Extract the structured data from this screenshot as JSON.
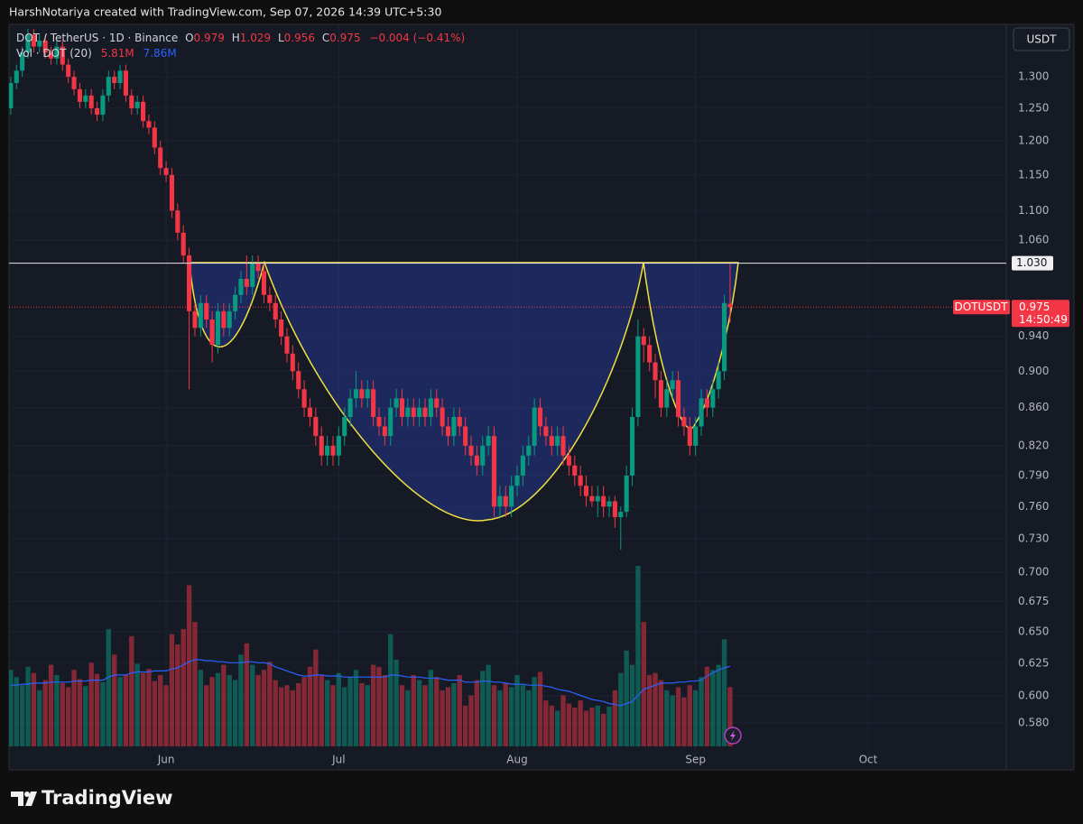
{
  "header": {
    "attribution": "HarshNotariya created with TradingView.com, Sep 07, 2026 14:39 UTC+5:30",
    "symbol": "DOT / TetherUS · 1D · Binance",
    "ohlc_letters": [
      "O",
      "H",
      "L",
      "C"
    ],
    "change": "−0.004 (−0.41%)",
    "vol_label": "Vol · DOT (20)",
    "vol_value": "5.81M",
    "vol_ma_value": "7.86M"
  },
  "chart_data": {
    "type": "candlestick",
    "candles": [
      [
        1.25,
        1.3,
        1.24,
        1.29
      ],
      [
        1.29,
        1.32,
        1.28,
        1.31
      ],
      [
        1.31,
        1.35,
        1.3,
        1.34
      ],
      [
        1.34,
        1.38,
        1.33,
        1.37
      ],
      [
        1.37,
        1.38,
        1.34,
        1.35
      ],
      [
        1.35,
        1.37,
        1.34,
        1.36
      ],
      [
        1.36,
        1.37,
        1.33,
        1.34
      ],
      [
        1.34,
        1.35,
        1.32,
        1.33
      ],
      [
        1.33,
        1.36,
        1.32,
        1.35
      ],
      [
        1.35,
        1.36,
        1.31,
        1.32
      ],
      [
        1.32,
        1.33,
        1.29,
        1.3
      ],
      [
        1.3,
        1.31,
        1.27,
        1.28
      ],
      [
        1.28,
        1.29,
        1.25,
        1.26
      ],
      [
        1.26,
        1.28,
        1.25,
        1.27
      ],
      [
        1.27,
        1.28,
        1.24,
        1.25
      ],
      [
        1.25,
        1.26,
        1.23,
        1.24
      ],
      [
        1.24,
        1.28,
        1.23,
        1.27
      ],
      [
        1.27,
        1.31,
        1.26,
        1.3
      ],
      [
        1.3,
        1.31,
        1.28,
        1.29
      ],
      [
        1.29,
        1.32,
        1.28,
        1.31
      ],
      [
        1.31,
        1.32,
        1.26,
        1.27
      ],
      [
        1.27,
        1.28,
        1.24,
        1.25
      ],
      [
        1.25,
        1.27,
        1.24,
        1.26
      ],
      [
        1.26,
        1.27,
        1.22,
        1.23
      ],
      [
        1.23,
        1.24,
        1.21,
        1.22
      ],
      [
        1.22,
        1.23,
        1.18,
        1.19
      ],
      [
        1.19,
        1.2,
        1.15,
        1.16
      ],
      [
        1.16,
        1.17,
        1.14,
        1.15
      ],
      [
        1.15,
        1.16,
        1.09,
        1.1
      ],
      [
        1.1,
        1.11,
        1.06,
        1.07
      ],
      [
        1.07,
        1.08,
        1.03,
        1.04
      ],
      [
        1.04,
        1.05,
        0.88,
        0.97
      ],
      [
        0.97,
        0.98,
        0.94,
        0.95
      ],
      [
        0.95,
        0.99,
        0.94,
        0.98
      ],
      [
        0.98,
        0.99,
        0.95,
        0.96
      ],
      [
        0.96,
        0.97,
        0.91,
        0.93
      ],
      [
        0.93,
        0.98,
        0.92,
        0.97
      ],
      [
        0.97,
        0.98,
        0.94,
        0.95
      ],
      [
        0.95,
        0.98,
        0.94,
        0.97
      ],
      [
        0.97,
        1.0,
        0.96,
        0.99
      ],
      [
        0.99,
        1.02,
        0.98,
        1.01
      ],
      [
        1.01,
        1.04,
        0.99,
        1.0
      ],
      [
        1.0,
        1.04,
        0.99,
        1.03
      ],
      [
        1.03,
        1.04,
        1.01,
        1.02
      ],
      [
        1.02,
        1.03,
        0.98,
        0.99
      ],
      [
        0.99,
        1.0,
        0.97,
        0.98
      ],
      [
        0.98,
        0.99,
        0.95,
        0.96
      ],
      [
        0.96,
        0.97,
        0.93,
        0.94
      ],
      [
        0.94,
        0.95,
        0.91,
        0.92
      ],
      [
        0.92,
        0.93,
        0.89,
        0.9
      ],
      [
        0.9,
        0.91,
        0.87,
        0.88
      ],
      [
        0.88,
        0.89,
        0.85,
        0.86
      ],
      [
        0.86,
        0.87,
        0.84,
        0.85
      ],
      [
        0.85,
        0.86,
        0.82,
        0.83
      ],
      [
        0.83,
        0.84,
        0.8,
        0.81
      ],
      [
        0.81,
        0.83,
        0.8,
        0.82
      ],
      [
        0.82,
        0.83,
        0.8,
        0.81
      ],
      [
        0.81,
        0.84,
        0.8,
        0.83
      ],
      [
        0.83,
        0.86,
        0.82,
        0.85
      ],
      [
        0.85,
        0.88,
        0.84,
        0.87
      ],
      [
        0.87,
        0.9,
        0.86,
        0.88
      ],
      [
        0.88,
        0.89,
        0.86,
        0.87
      ],
      [
        0.87,
        0.89,
        0.86,
        0.88
      ],
      [
        0.88,
        0.89,
        0.84,
        0.85
      ],
      [
        0.85,
        0.86,
        0.83,
        0.84
      ],
      [
        0.84,
        0.85,
        0.82,
        0.83
      ],
      [
        0.83,
        0.87,
        0.82,
        0.86
      ],
      [
        0.86,
        0.88,
        0.85,
        0.87
      ],
      [
        0.87,
        0.88,
        0.84,
        0.85
      ],
      [
        0.85,
        0.87,
        0.84,
        0.86
      ],
      [
        0.86,
        0.87,
        0.84,
        0.85
      ],
      [
        0.85,
        0.87,
        0.84,
        0.86
      ],
      [
        0.86,
        0.87,
        0.84,
        0.85
      ],
      [
        0.85,
        0.88,
        0.84,
        0.87
      ],
      [
        0.87,
        0.88,
        0.85,
        0.86
      ],
      [
        0.86,
        0.87,
        0.83,
        0.84
      ],
      [
        0.84,
        0.85,
        0.82,
        0.83
      ],
      [
        0.83,
        0.86,
        0.82,
        0.85
      ],
      [
        0.85,
        0.86,
        0.83,
        0.84
      ],
      [
        0.84,
        0.85,
        0.81,
        0.82
      ],
      [
        0.82,
        0.83,
        0.8,
        0.81
      ],
      [
        0.81,
        0.82,
        0.79,
        0.8
      ],
      [
        0.8,
        0.83,
        0.79,
        0.82
      ],
      [
        0.82,
        0.84,
        0.81,
        0.83
      ],
      [
        0.83,
        0.84,
        0.75,
        0.76
      ],
      [
        0.76,
        0.78,
        0.75,
        0.77
      ],
      [
        0.77,
        0.78,
        0.75,
        0.76
      ],
      [
        0.76,
        0.79,
        0.75,
        0.78
      ],
      [
        0.78,
        0.8,
        0.77,
        0.79
      ],
      [
        0.79,
        0.82,
        0.78,
        0.81
      ],
      [
        0.81,
        0.83,
        0.8,
        0.82
      ],
      [
        0.82,
        0.87,
        0.81,
        0.86
      ],
      [
        0.86,
        0.87,
        0.83,
        0.84
      ],
      [
        0.84,
        0.85,
        0.82,
        0.83
      ],
      [
        0.83,
        0.84,
        0.81,
        0.82
      ],
      [
        0.82,
        0.84,
        0.81,
        0.83
      ],
      [
        0.83,
        0.84,
        0.8,
        0.81
      ],
      [
        0.81,
        0.82,
        0.79,
        0.8
      ],
      [
        0.8,
        0.81,
        0.78,
        0.79
      ],
      [
        0.79,
        0.8,
        0.77,
        0.78
      ],
      [
        0.78,
        0.79,
        0.76,
        0.77
      ],
      [
        0.77,
        0.78,
        0.76,
        0.765
      ],
      [
        0.765,
        0.78,
        0.75,
        0.77
      ],
      [
        0.77,
        0.78,
        0.75,
        0.76
      ],
      [
        0.76,
        0.77,
        0.75,
        0.765
      ],
      [
        0.765,
        0.77,
        0.74,
        0.75
      ],
      [
        0.75,
        0.76,
        0.72,
        0.755
      ],
      [
        0.755,
        0.8,
        0.75,
        0.79
      ],
      [
        0.79,
        0.86,
        0.78,
        0.85
      ],
      [
        0.85,
        0.96,
        0.84,
        0.94
      ],
      [
        0.94,
        0.95,
        0.91,
        0.93
      ],
      [
        0.93,
        0.94,
        0.9,
        0.91
      ],
      [
        0.91,
        0.92,
        0.87,
        0.89
      ],
      [
        0.89,
        0.9,
        0.85,
        0.86
      ],
      [
        0.86,
        0.89,
        0.85,
        0.88
      ],
      [
        0.88,
        0.9,
        0.87,
        0.89
      ],
      [
        0.89,
        0.9,
        0.84,
        0.85
      ],
      [
        0.85,
        0.86,
        0.83,
        0.84
      ],
      [
        0.84,
        0.85,
        0.81,
        0.82
      ],
      [
        0.82,
        0.85,
        0.81,
        0.84
      ],
      [
        0.84,
        0.88,
        0.83,
        0.87
      ],
      [
        0.87,
        0.88,
        0.85,
        0.86
      ],
      [
        0.86,
        0.89,
        0.85,
        0.88
      ],
      [
        0.88,
        0.91,
        0.87,
        0.9
      ],
      [
        0.9,
        0.99,
        0.89,
        0.98
      ],
      [
        0.979,
        1.029,
        0.956,
        0.975
      ]
    ],
    "volume": [
      7.5,
      6.8,
      6.0,
      7.8,
      7.2,
      5.5,
      6.5,
      8.0,
      7.0,
      6.2,
      5.8,
      7.5,
      6.6,
      5.9,
      8.2,
      7.1,
      6.3,
      11.5,
      9.0,
      6.8,
      7.0,
      10.8,
      8.1,
      7.2,
      7.6,
      6.4,
      7.0,
      6.0,
      11.0,
      10.0,
      11.5,
      15.8,
      12.2,
      7.5,
      6.0,
      6.8,
      7.2,
      8.0,
      7.0,
      6.5,
      9.0,
      10.1,
      8.0,
      7.0,
      7.5,
      8.3,
      6.5,
      5.8,
      6.0,
      5.5,
      6.2,
      6.8,
      7.8,
      9.5,
      7.0,
      6.5,
      6.0,
      7.2,
      5.8,
      6.8,
      7.5,
      6.2,
      6.0,
      8.0,
      7.8,
      7.0,
      11.0,
      8.5,
      6.0,
      5.5,
      7.0,
      6.5,
      6.0,
      7.5,
      6.8,
      5.5,
      5.8,
      6.2,
      7.0,
      4.0,
      5.0,
      6.5,
      7.4,
      8.0,
      6.0,
      5.5,
      6.2,
      5.8,
      7.0,
      6.0,
      5.5,
      6.8,
      7.3,
      4.5,
      4.0,
      3.5,
      5.0,
      4.2,
      3.8,
      4.5,
      3.5,
      3.8,
      4.0,
      3.2,
      3.9,
      5.5,
      7.2,
      9.4,
      8.0,
      17.7,
      12.2,
      7.0,
      7.2,
      6.5,
      5.5,
      5.0,
      5.8,
      4.8,
      6.0,
      5.5,
      6.8,
      7.8,
      7.5,
      8.0,
      10.5,
      5.81
    ],
    "volume_ma": [
      6.0,
      6.0,
      6.1,
      6.1,
      6.2,
      6.2,
      6.2,
      6.3,
      6.3,
      6.3,
      6.3,
      6.4,
      6.4,
      6.4,
      6.5,
      6.5,
      6.5,
      6.8,
      7.0,
      7.0,
      7.0,
      7.2,
      7.3,
      7.3,
      7.3,
      7.4,
      7.4,
      7.4,
      7.6,
      7.7,
      8.0,
      8.3,
      8.5,
      8.5,
      8.4,
      8.4,
      8.3,
      8.3,
      8.2,
      8.2,
      8.2,
      8.3,
      8.3,
      8.2,
      8.2,
      8.1,
      7.8,
      7.6,
      7.4,
      7.2,
      7.0,
      6.9,
      6.9,
      7.0,
      7.0,
      6.9,
      6.9,
      6.9,
      6.8,
      6.8,
      6.8,
      6.8,
      6.8,
      6.8,
      6.8,
      6.8,
      7.0,
      7.0,
      6.9,
      6.8,
      6.8,
      6.8,
      6.7,
      6.7,
      6.7,
      6.6,
      6.5,
      6.5,
      6.5,
      6.3,
      6.3,
      6.3,
      6.4,
      6.4,
      6.3,
      6.3,
      6.2,
      6.1,
      6.1,
      6.1,
      6.0,
      6.0,
      6.0,
      5.9,
      5.8,
      5.6,
      5.5,
      5.4,
      5.2,
      5.0,
      4.8,
      4.6,
      4.5,
      4.4,
      4.2,
      4.1,
      4.0,
      4.2,
      4.4,
      5.0,
      5.6,
      5.8,
      6.0,
      6.2,
      6.2,
      6.2,
      6.3,
      6.3,
      6.4,
      6.4,
      6.5,
      6.9,
      7.2,
      7.5,
      7.7,
      7.86
    ],
    "xlim": [
      -0.3,
      173
    ],
    "xticks": [
      {
        "value": 27,
        "label": "Jun"
      },
      {
        "value": 57,
        "label": "Jul"
      },
      {
        "value": 88,
        "label": "Aug"
      },
      {
        "value": 119,
        "label": "Sep"
      },
      {
        "value": 149,
        "label": "Oct"
      }
    ],
    "ylim": [
      0.547,
      1.388
    ],
    "yscale": "log",
    "yticks": [
      {
        "value": 1.3,
        "label": "1.300"
      },
      {
        "value": 1.25,
        "label": "1.250"
      },
      {
        "value": 1.2,
        "label": "1.200"
      },
      {
        "value": 1.15,
        "label": "1.150"
      },
      {
        "value": 1.1,
        "label": "1.100"
      },
      {
        "value": 1.06,
        "label": "1.060"
      },
      {
        "value": 0.94,
        "label": "0.940"
      },
      {
        "value": 0.9,
        "label": "0.900"
      },
      {
        "value": 0.86,
        "label": "0.860"
      },
      {
        "value": 0.82,
        "label": "0.820"
      },
      {
        "value": 0.79,
        "label": "0.790"
      },
      {
        "value": 0.76,
        "label": "0.760"
      },
      {
        "value": 0.73,
        "label": "0.730"
      },
      {
        "value": 0.7,
        "label": "0.700"
      },
      0.675,
      {
        "value": 0.65,
        "label": "0.650"
      },
      0.625,
      {
        "value": 0.6,
        "label": "0.600"
      },
      {
        "value": 0.58,
        "label": "0.580"
      }
    ],
    "hline": {
      "value": 1.03,
      "label": "1.030"
    },
    "symbol_label": "DOTUSDT",
    "countdown": "14:50:49",
    "currency": "USDT",
    "grid": true,
    "up_color": "#089981",
    "down_color": "#f23645",
    "ma_color": "#2962ff"
  },
  "footer": {
    "brand": "TradingView"
  }
}
